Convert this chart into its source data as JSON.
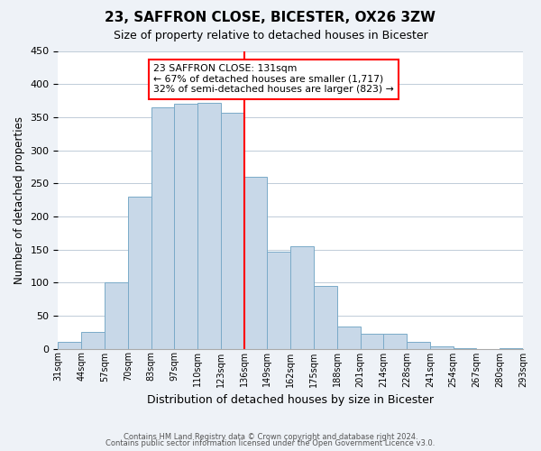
{
  "title": "23, SAFFRON CLOSE, BICESTER, OX26 3ZW",
  "subtitle": "Size of property relative to detached houses in Bicester",
  "xlabel": "Distribution of detached houses by size in Bicester",
  "ylabel": "Number of detached properties",
  "footer_lines": [
    "Contains HM Land Registry data © Crown copyright and database right 2024.",
    "Contains public sector information licensed under the Open Government Licence v3.0."
  ],
  "bin_labels": [
    "31sqm",
    "44sqm",
    "57sqm",
    "70sqm",
    "83sqm",
    "97sqm",
    "110sqm",
    "123sqm",
    "136sqm",
    "149sqm",
    "162sqm",
    "175sqm",
    "188sqm",
    "201sqm",
    "214sqm",
    "228sqm",
    "241sqm",
    "254sqm",
    "267sqm",
    "280sqm",
    "293sqm"
  ],
  "bar_values": [
    10,
    25,
    100,
    230,
    365,
    370,
    372,
    357,
    260,
    147,
    155,
    95,
    34,
    22,
    22,
    10,
    3,
    1,
    0,
    1
  ],
  "bar_color": "#c8d8e8",
  "bar_edge_color": "#7aaac8",
  "vline_x": 8,
  "vline_color": "red",
  "annotation_line1": "23 SAFFRON CLOSE: 131sqm",
  "annotation_line2": "← 67% of detached houses are smaller (1,717)",
  "annotation_line3": "32% of semi-detached houses are larger (823) →",
  "annotation_box_color": "#ffffff",
  "annotation_box_edge_color": "red",
  "ylim": [
    0,
    450
  ],
  "yticks": [
    0,
    50,
    100,
    150,
    200,
    250,
    300,
    350,
    400,
    450
  ],
  "background_color": "#eef2f7",
  "plot_bg_color": "#ffffff",
  "grid_color": "#c0ccd8"
}
